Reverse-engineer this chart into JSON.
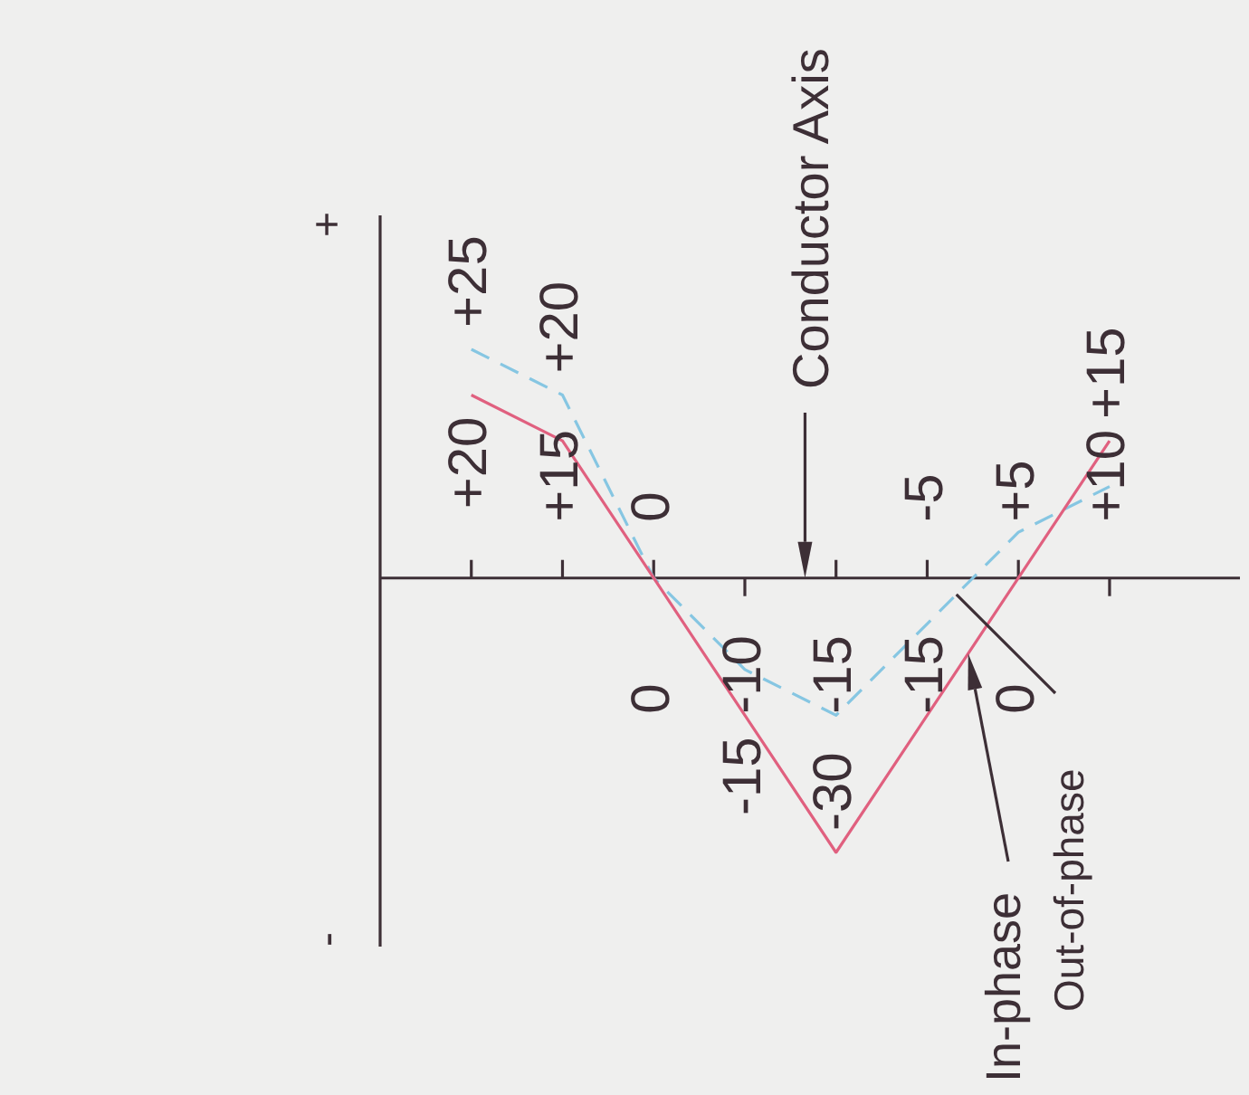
{
  "chart_data": {
    "type": "line",
    "categories": [
      null,
      null,
      null,
      null,
      null,
      null,
      null,
      null
    ],
    "series": [
      {
        "name": "In-phase",
        "color": "#e0607f",
        "line_style": "solid",
        "values": [
          20,
          15,
          0,
          -15,
          -30,
          -15,
          0,
          15
        ],
        "value_labels": [
          "+20",
          "+15",
          "0",
          "-15",
          "-30",
          "-15",
          "0",
          "+15"
        ]
      },
      {
        "name": "Out-of-phase",
        "color": "#86c6e2",
        "line_style": "dashed",
        "values": [
          25,
          20,
          0,
          -10,
          -15,
          -5,
          5,
          10
        ],
        "value_labels": [
          "+25",
          "+20",
          "0",
          "-10",
          "-15",
          "-5",
          "+5",
          "+10"
        ]
      }
    ],
    "marker": "none",
    "annotations": [
      "Conductor Axis",
      "+",
      "-"
    ]
  }
}
